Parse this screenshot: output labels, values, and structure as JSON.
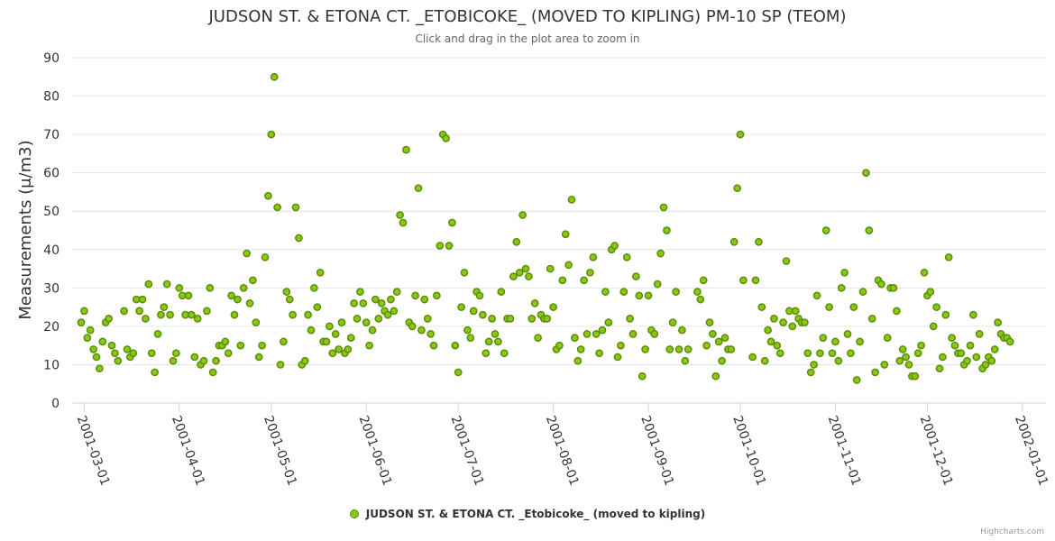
{
  "chart_data": {
    "type": "scatter",
    "title": "JUDSON ST. & ETONA CT. _ETOBICOKE_ (MOVED TO KIPLING) PM-10 SP (TEOM)",
    "subtitle": "Click and drag in the plot area to zoom in",
    "ylabel": "Measurements (μ/m3)",
    "xlabel": "",
    "ylim": [
      0,
      90
    ],
    "y_ticks": [
      0,
      10,
      20,
      30,
      40,
      50,
      60,
      70,
      80,
      90
    ],
    "x_tick_labels": [
      "2001-03-01",
      "2001-04-01",
      "2001-05-01",
      "2001-06-01",
      "2001-07-01",
      "2001-08-01",
      "2001-09-01",
      "2001-10-01",
      "2001-11-01",
      "2001-12-01",
      "2002-01-01"
    ],
    "x_start": "2001-02-28",
    "legend": "bottom-center",
    "grid": true,
    "series": [
      {
        "name": "JUDSON ST. & ETONA CT. _Etobicoke_ (moved to kipling)",
        "color": "#8bc61a",
        "edge_color": "#5a8f00",
        "points": [
          [
            0,
            21
          ],
          [
            1,
            24
          ],
          [
            2,
            17
          ],
          [
            3,
            19
          ],
          [
            4,
            14
          ],
          [
            5,
            12
          ],
          [
            6,
            9
          ],
          [
            7,
            16
          ],
          [
            8,
            21
          ],
          [
            9,
            22
          ],
          [
            10,
            15
          ],
          [
            11,
            13
          ],
          [
            12,
            11
          ],
          [
            14,
            24
          ],
          [
            15,
            14
          ],
          [
            16,
            12
          ],
          [
            17,
            13
          ],
          [
            18,
            27
          ],
          [
            19,
            24
          ],
          [
            20,
            27
          ],
          [
            21,
            22
          ],
          [
            22,
            31
          ],
          [
            23,
            13
          ],
          [
            24,
            8
          ],
          [
            25,
            18
          ],
          [
            26,
            23
          ],
          [
            27,
            25
          ],
          [
            28,
            31
          ],
          [
            29,
            23
          ],
          [
            30,
            11
          ],
          [
            31,
            13
          ],
          [
            32,
            30
          ],
          [
            33,
            28
          ],
          [
            34,
            23
          ],
          [
            35,
            28
          ],
          [
            36,
            23
          ],
          [
            37,
            12
          ],
          [
            38,
            22
          ],
          [
            39,
            10
          ],
          [
            40,
            11
          ],
          [
            41,
            24
          ],
          [
            42,
            30
          ],
          [
            43,
            8
          ],
          [
            44,
            11
          ],
          [
            45,
            15
          ],
          [
            46,
            15
          ],
          [
            47,
            16
          ],
          [
            48,
            13
          ],
          [
            49,
            28
          ],
          [
            50,
            23
          ],
          [
            51,
            27
          ],
          [
            52,
            15
          ],
          [
            53,
            30
          ],
          [
            54,
            39
          ],
          [
            55,
            26
          ],
          [
            56,
            32
          ],
          [
            57,
            21
          ],
          [
            58,
            12
          ],
          [
            59,
            15
          ],
          [
            60,
            38
          ],
          [
            61,
            54
          ],
          [
            62,
            70
          ],
          [
            63,
            85
          ],
          [
            64,
            51
          ],
          [
            65,
            10
          ],
          [
            66,
            16
          ],
          [
            67,
            29
          ],
          [
            68,
            27
          ],
          [
            69,
            23
          ],
          [
            70,
            51
          ],
          [
            71,
            43
          ],
          [
            72,
            10
          ],
          [
            73,
            11
          ],
          [
            74,
            23
          ],
          [
            75,
            19
          ],
          [
            76,
            30
          ],
          [
            77,
            25
          ],
          [
            78,
            34
          ],
          [
            79,
            16
          ],
          [
            80,
            16
          ],
          [
            81,
            20
          ],
          [
            82,
            13
          ],
          [
            83,
            18
          ],
          [
            84,
            14
          ],
          [
            85,
            21
          ],
          [
            86,
            13
          ],
          [
            87,
            14
          ],
          [
            88,
            17
          ],
          [
            89,
            26
          ],
          [
            90,
            22
          ],
          [
            91,
            29
          ],
          [
            92,
            26
          ],
          [
            93,
            21
          ],
          [
            94,
            15
          ],
          [
            95,
            19
          ],
          [
            96,
            27
          ],
          [
            97,
            22
          ],
          [
            98,
            26
          ],
          [
            99,
            24
          ],
          [
            100,
            23
          ],
          [
            101,
            27
          ],
          [
            102,
            24
          ],
          [
            103,
            29
          ],
          [
            104,
            49
          ],
          [
            105,
            47
          ],
          [
            106,
            66
          ],
          [
            107,
            21
          ],
          [
            108,
            20
          ],
          [
            109,
            28
          ],
          [
            110,
            56
          ],
          [
            111,
            19
          ],
          [
            112,
            27
          ],
          [
            113,
            22
          ],
          [
            114,
            18
          ],
          [
            115,
            15
          ],
          [
            116,
            28
          ],
          [
            117,
            41
          ],
          [
            118,
            70
          ],
          [
            119,
            69
          ],
          [
            120,
            41
          ],
          [
            121,
            47
          ],
          [
            122,
            15
          ],
          [
            123,
            8
          ],
          [
            124,
            25
          ],
          [
            125,
            34
          ],
          [
            126,
            19
          ],
          [
            127,
            17
          ],
          [
            128,
            24
          ],
          [
            129,
            29
          ],
          [
            130,
            28
          ],
          [
            131,
            23
          ],
          [
            132,
            13
          ],
          [
            133,
            16
          ],
          [
            134,
            22
          ],
          [
            135,
            18
          ],
          [
            136,
            16
          ],
          [
            137,
            29
          ],
          [
            138,
            13
          ],
          [
            139,
            22
          ],
          [
            140,
            22
          ],
          [
            141,
            33
          ],
          [
            142,
            42
          ],
          [
            143,
            34
          ],
          [
            144,
            49
          ],
          [
            145,
            35
          ],
          [
            146,
            33
          ],
          [
            147,
            22
          ],
          [
            148,
            26
          ],
          [
            149,
            17
          ],
          [
            150,
            23
          ],
          [
            151,
            22
          ],
          [
            152,
            22
          ],
          [
            153,
            35
          ],
          [
            154,
            25
          ],
          [
            155,
            14
          ],
          [
            156,
            15
          ],
          [
            157,
            32
          ],
          [
            158,
            44
          ],
          [
            159,
            36
          ],
          [
            160,
            53
          ],
          [
            161,
            17
          ],
          [
            162,
            11
          ],
          [
            163,
            14
          ],
          [
            164,
            32
          ],
          [
            165,
            18
          ],
          [
            166,
            34
          ],
          [
            167,
            38
          ],
          [
            168,
            18
          ],
          [
            169,
            13
          ],
          [
            170,
            19
          ],
          [
            171,
            29
          ],
          [
            172,
            21
          ],
          [
            173,
            40
          ],
          [
            174,
            41
          ],
          [
            175,
            12
          ],
          [
            176,
            15
          ],
          [
            177,
            29
          ],
          [
            178,
            38
          ],
          [
            179,
            22
          ],
          [
            180,
            18
          ],
          [
            181,
            33
          ],
          [
            182,
            28
          ],
          [
            183,
            7
          ],
          [
            184,
            14
          ],
          [
            185,
            28
          ],
          [
            186,
            19
          ],
          [
            187,
            18
          ],
          [
            188,
            31
          ],
          [
            189,
            39
          ],
          [
            190,
            51
          ],
          [
            191,
            45
          ],
          [
            192,
            14
          ],
          [
            193,
            21
          ],
          [
            194,
            29
          ],
          [
            195,
            14
          ],
          [
            196,
            19
          ],
          [
            197,
            11
          ],
          [
            198,
            14
          ],
          [
            201,
            29
          ],
          [
            202,
            27
          ],
          [
            203,
            32
          ],
          [
            204,
            15
          ],
          [
            205,
            21
          ],
          [
            206,
            18
          ],
          [
            207,
            7
          ],
          [
            208,
            16
          ],
          [
            209,
            11
          ],
          [
            210,
            17
          ],
          [
            211,
            14
          ],
          [
            212,
            14
          ],
          [
            213,
            42
          ],
          [
            214,
            56
          ],
          [
            215,
            70
          ],
          [
            216,
            32
          ],
          [
            219,
            12
          ],
          [
            220,
            32
          ],
          [
            221,
            42
          ],
          [
            222,
            25
          ],
          [
            223,
            11
          ],
          [
            224,
            19
          ],
          [
            225,
            16
          ],
          [
            226,
            22
          ],
          [
            227,
            15
          ],
          [
            228,
            13
          ],
          [
            229,
            21
          ],
          [
            230,
            37
          ],
          [
            231,
            24
          ],
          [
            232,
            20
          ],
          [
            233,
            24
          ],
          [
            234,
            22
          ],
          [
            235,
            21
          ],
          [
            236,
            21
          ],
          [
            237,
            13
          ],
          [
            238,
            8
          ],
          [
            239,
            10
          ],
          [
            240,
            28
          ],
          [
            241,
            13
          ],
          [
            242,
            17
          ],
          [
            243,
            45
          ],
          [
            244,
            25
          ],
          [
            245,
            13
          ],
          [
            246,
            16
          ],
          [
            247,
            11
          ],
          [
            248,
            30
          ],
          [
            249,
            34
          ],
          [
            250,
            18
          ],
          [
            251,
            13
          ],
          [
            252,
            25
          ],
          [
            253,
            6
          ],
          [
            254,
            16
          ],
          [
            255,
            29
          ],
          [
            256,
            60
          ],
          [
            257,
            45
          ],
          [
            258,
            22
          ],
          [
            259,
            8
          ],
          [
            260,
            32
          ],
          [
            261,
            31
          ],
          [
            262,
            10
          ],
          [
            263,
            17
          ],
          [
            264,
            30
          ],
          [
            265,
            30
          ],
          [
            266,
            24
          ],
          [
            267,
            11
          ],
          [
            268,
            14
          ],
          [
            269,
            12
          ],
          [
            270,
            10
          ],
          [
            271,
            7
          ],
          [
            272,
            7
          ],
          [
            273,
            13
          ],
          [
            274,
            15
          ],
          [
            275,
            34
          ],
          [
            276,
            28
          ],
          [
            277,
            29
          ],
          [
            278,
            20
          ],
          [
            279,
            25
          ],
          [
            280,
            9
          ],
          [
            281,
            12
          ],
          [
            282,
            23
          ],
          [
            283,
            38
          ],
          [
            284,
            17
          ],
          [
            285,
            15
          ],
          [
            286,
            13
          ],
          [
            287,
            13
          ],
          [
            288,
            10
          ],
          [
            289,
            11
          ],
          [
            290,
            15
          ],
          [
            291,
            23
          ],
          [
            292,
            12
          ],
          [
            293,
            18
          ],
          [
            294,
            9
          ],
          [
            295,
            10
          ],
          [
            296,
            12
          ],
          [
            297,
            11
          ],
          [
            298,
            14
          ],
          [
            299,
            21
          ],
          [
            300,
            18
          ],
          [
            301,
            17
          ],
          [
            302,
            17
          ],
          [
            303,
            16
          ]
        ]
      }
    ]
  },
  "credits": "Highcharts.com"
}
